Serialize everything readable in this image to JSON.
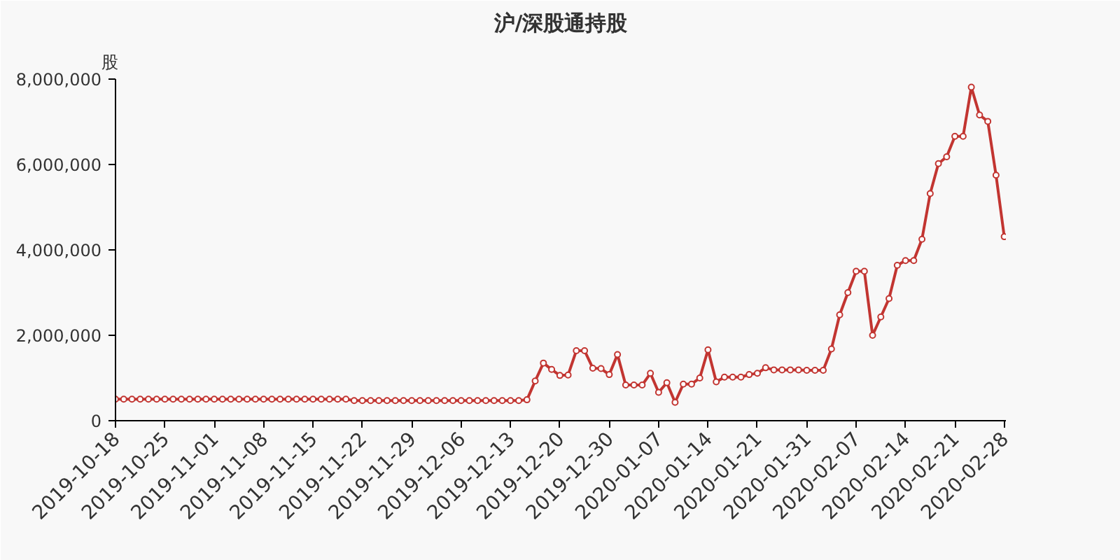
{
  "chart_data": {
    "type": "line",
    "title": "沪/深股通持股",
    "ylabel": "股",
    "categories": [
      "2019-10-18",
      null,
      null,
      null,
      null,
      null,
      "2019-10-25",
      null,
      null,
      null,
      null,
      null,
      "2019-11-01",
      null,
      null,
      null,
      null,
      null,
      "2019-11-08",
      null,
      null,
      null,
      null,
      null,
      "2019-11-15",
      null,
      null,
      null,
      null,
      null,
      "2019-11-22",
      null,
      null,
      null,
      null,
      null,
      "2019-11-29",
      null,
      null,
      null,
      null,
      null,
      "2019-12-06",
      null,
      null,
      null,
      null,
      null,
      "2019-12-13",
      null,
      null,
      null,
      null,
      null,
      "2019-12-20",
      null,
      null,
      null,
      null,
      null,
      "2019-12-30",
      null,
      null,
      null,
      null,
      null,
      "2020-01-07",
      null,
      null,
      null,
      null,
      null,
      "2020-01-14",
      null,
      null,
      null,
      null,
      null,
      "2020-01-21",
      null,
      null,
      null,
      null,
      null,
      "2020-01-31",
      null,
      null,
      null,
      null,
      null,
      "2020-02-07",
      null,
      null,
      null,
      null,
      null,
      "2020-02-14",
      null,
      null,
      null,
      null,
      null,
      "2020-02-21",
      null,
      null,
      null,
      null,
      null,
      "2020-02-28"
    ],
    "series": [
      {
        "color": "#c23531",
        "values": [
          505000,
          505000,
          505000,
          505000,
          505000,
          505000,
          505000,
          505000,
          505000,
          505000,
          505000,
          505000,
          505000,
          505000,
          505000,
          505000,
          505000,
          505000,
          505000,
          505000,
          505000,
          505000,
          505000,
          505000,
          505000,
          505000,
          505000,
          505000,
          505000,
          472000,
          472000,
          472000,
          472000,
          472000,
          472000,
          472000,
          472000,
          472000,
          472000,
          472000,
          472000,
          472000,
          472000,
          472000,
          472000,
          472000,
          472000,
          472000,
          472000,
          472000,
          490000,
          930000,
          1350000,
          1200000,
          1060000,
          1070000,
          1640000,
          1640000,
          1230000,
          1220000,
          1080000,
          1550000,
          835000,
          835000,
          835000,
          1110000,
          665000,
          890000,
          430000,
          857000,
          857000,
          1000000,
          1660000,
          910000,
          1020000,
          1020000,
          1020000,
          1080000,
          1110000,
          1240000,
          1190000,
          1190000,
          1190000,
          1190000,
          1180000,
          1180000,
          1180000,
          1680000,
          2480000,
          3000000,
          3500000,
          3500000,
          2000000,
          2430000,
          2860000,
          3640000,
          3750000,
          3750000,
          4250000,
          5320000,
          6020000,
          6180000,
          6660000,
          6660000,
          7810000,
          7160000,
          7010000,
          5750000,
          4310000
        ]
      }
    ],
    "ylim": [
      0,
      8000000
    ],
    "yticks": [
      0,
      {
        "value": 2000000,
        "label": "2,000,000"
      },
      {
        "value": 4000000,
        "label": "4,000,000"
      },
      {
        "value": 6000000,
        "label": "6,000,000"
      },
      {
        "value": 8000000,
        "label": "8,000,000"
      }
    ],
    "grid": false,
    "marker": "circle",
    "line_style": "solid"
  }
}
